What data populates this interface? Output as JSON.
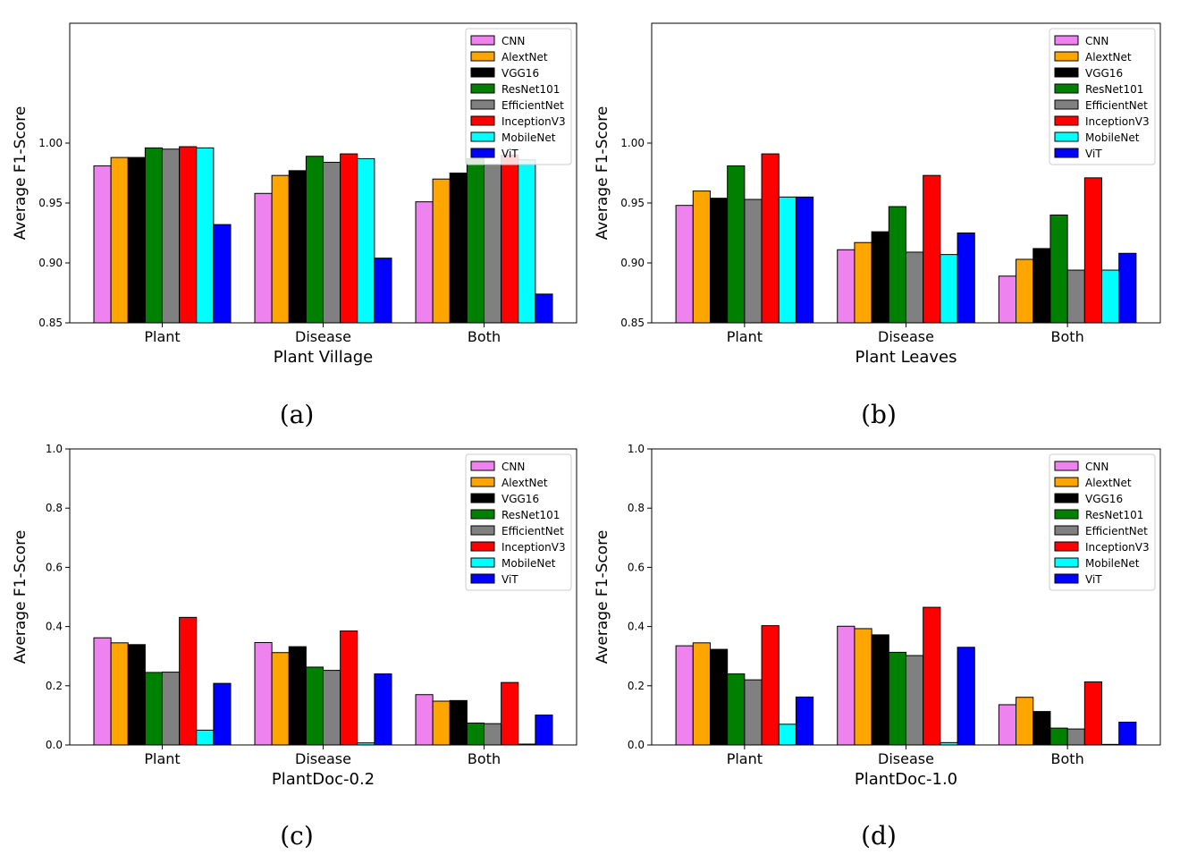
{
  "chart_data": [
    {
      "type": "bar",
      "label": "(a)",
      "xlabel": "Plant Village",
      "ylabel": "Average F1-Score",
      "ylim": [
        0.85,
        1.1
      ],
      "yticks": [
        "0.85",
        "0.90",
        "0.95",
        "1.00"
      ],
      "categories": [
        "Plant",
        "Disease",
        "Both"
      ],
      "legend_position": "top-right",
      "series": [
        {
          "name": "CNN",
          "color": "#ee82ee",
          "values": [
            0.981,
            0.958,
            0.951
          ]
        },
        {
          "name": "AlextNet",
          "color": "#ffa500",
          "values": [
            0.988,
            0.973,
            0.97
          ]
        },
        {
          "name": "VGG16",
          "color": "#000000",
          "values": [
            0.988,
            0.977,
            0.975
          ]
        },
        {
          "name": "ResNet101",
          "color": "#008000",
          "values": [
            0.996,
            0.989,
            0.987
          ]
        },
        {
          "name": "EfficientNet",
          "color": "#808080",
          "values": [
            0.995,
            0.984,
            0.982
          ]
        },
        {
          "name": "InceptionV3",
          "color": "#ff0000",
          "values": [
            0.997,
            0.991,
            0.99
          ]
        },
        {
          "name": "MobileNet",
          "color": "#00ffff",
          "values": [
            0.996,
            0.987,
            0.986
          ]
        },
        {
          "name": "ViT",
          "color": "#0000ff",
          "values": [
            0.932,
            0.904,
            0.874
          ]
        }
      ]
    },
    {
      "type": "bar",
      "label": "(b)",
      "xlabel": "Plant Leaves",
      "ylabel": "Average F1-Score",
      "ylim": [
        0.85,
        1.1
      ],
      "yticks": [
        "0.85",
        "0.90",
        "0.95",
        "1.00"
      ],
      "categories": [
        "Plant",
        "Disease",
        "Both"
      ],
      "legend_position": "top-right",
      "series": [
        {
          "name": "CNN",
          "color": "#ee82ee",
          "values": [
            0.948,
            0.911,
            0.889
          ]
        },
        {
          "name": "AlextNet",
          "color": "#ffa500",
          "values": [
            0.96,
            0.917,
            0.903
          ]
        },
        {
          "name": "VGG16",
          "color": "#000000",
          "values": [
            0.954,
            0.926,
            0.912
          ]
        },
        {
          "name": "ResNet101",
          "color": "#008000",
          "values": [
            0.981,
            0.947,
            0.94
          ]
        },
        {
          "name": "EfficientNet",
          "color": "#808080",
          "values": [
            0.953,
            0.909,
            0.894
          ]
        },
        {
          "name": "InceptionV3",
          "color": "#ff0000",
          "values": [
            0.991,
            0.973,
            0.971
          ]
        },
        {
          "name": "MobileNet",
          "color": "#00ffff",
          "values": [
            0.955,
            0.907,
            0.894
          ]
        },
        {
          "name": "ViT",
          "color": "#0000ff",
          "values": [
            0.955,
            0.925,
            0.908
          ]
        }
      ]
    },
    {
      "type": "bar",
      "label": "(c)",
      "xlabel": "PlantDoc-0.2",
      "ylabel": "Average F1-Score",
      "ylim": [
        0.0,
        1.0
      ],
      "yticks": [
        "0.0",
        "0.2",
        "0.4",
        "0.6",
        "0.8",
        "1.0"
      ],
      "categories": [
        "Plant",
        "Disease",
        "Both"
      ],
      "legend_position": "top-right",
      "series": [
        {
          "name": "CNN",
          "color": "#ee82ee",
          "values": [
            0.362,
            0.346,
            0.17
          ]
        },
        {
          "name": "AlextNet",
          "color": "#ffa500",
          "values": [
            0.345,
            0.312,
            0.148
          ]
        },
        {
          "name": "VGG16",
          "color": "#000000",
          "values": [
            0.339,
            0.332,
            0.15
          ]
        },
        {
          "name": "ResNet101",
          "color": "#008000",
          "values": [
            0.245,
            0.263,
            0.074
          ]
        },
        {
          "name": "EfficientNet",
          "color": "#808080",
          "values": [
            0.246,
            0.252,
            0.072
          ]
        },
        {
          "name": "InceptionV3",
          "color": "#ff0000",
          "values": [
            0.431,
            0.385,
            0.211
          ]
        },
        {
          "name": "MobileNet",
          "color": "#00ffff",
          "values": [
            0.05,
            0.007,
            0.003
          ]
        },
        {
          "name": "ViT",
          "color": "#0000ff",
          "values": [
            0.208,
            0.24,
            0.101
          ]
        }
      ]
    },
    {
      "type": "bar",
      "label": "(d)",
      "xlabel": "PlantDoc-1.0",
      "ylabel": "Average F1-Score",
      "ylim": [
        0.0,
        1.0
      ],
      "yticks": [
        "0.0",
        "0.2",
        "0.4",
        "0.6",
        "0.8",
        "1.0"
      ],
      "categories": [
        "Plant",
        "Disease",
        "Both"
      ],
      "legend_position": "top-right",
      "series": [
        {
          "name": "CNN",
          "color": "#ee82ee",
          "values": [
            0.335,
            0.401,
            0.136
          ]
        },
        {
          "name": "AlextNet",
          "color": "#ffa500",
          "values": [
            0.345,
            0.393,
            0.161
          ]
        },
        {
          "name": "VGG16",
          "color": "#000000",
          "values": [
            0.323,
            0.372,
            0.113
          ]
        },
        {
          "name": "ResNet101",
          "color": "#008000",
          "values": [
            0.24,
            0.313,
            0.057
          ]
        },
        {
          "name": "EfficientNet",
          "color": "#808080",
          "values": [
            0.22,
            0.302,
            0.054
          ]
        },
        {
          "name": "InceptionV3",
          "color": "#ff0000",
          "values": [
            0.403,
            0.465,
            0.213
          ]
        },
        {
          "name": "MobileNet",
          "color": "#00ffff",
          "values": [
            0.07,
            0.008,
            0.002
          ]
        },
        {
          "name": "ViT",
          "color": "#0000ff",
          "values": [
            0.162,
            0.33,
            0.077
          ]
        }
      ]
    }
  ]
}
